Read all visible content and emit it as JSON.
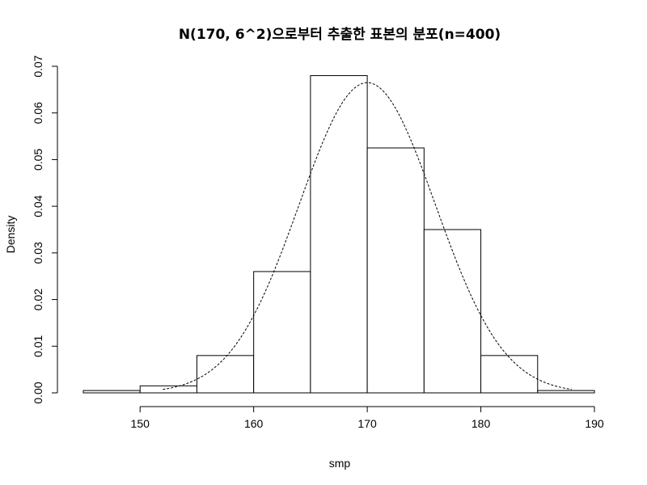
{
  "chart_data": {
    "type": "bar",
    "title": "N(170, 6^2)으로부터 추출한 표본의 분포(n=400)",
    "xlabel": "smp",
    "ylabel": "Density",
    "bin_edges": [
      145,
      150,
      155,
      160,
      165,
      170,
      175,
      180,
      185,
      190
    ],
    "values": [
      0.0005,
      0.0015,
      0.008,
      0.026,
      0.068,
      0.0525,
      0.035,
      0.008,
      0.0005
    ],
    "x_ticks": [
      150,
      160,
      170,
      180,
      190
    ],
    "y_ticks": [
      0.0,
      0.01,
      0.02,
      0.03,
      0.04,
      0.05,
      0.06,
      0.07
    ],
    "xlim": [
      145,
      190
    ],
    "ylim": [
      0,
      0.07
    ],
    "overlay": {
      "type": "normal-density",
      "mean": 170,
      "sd": 6,
      "x_range": [
        152,
        188
      ],
      "line_style": "dashed"
    },
    "grid": false
  }
}
